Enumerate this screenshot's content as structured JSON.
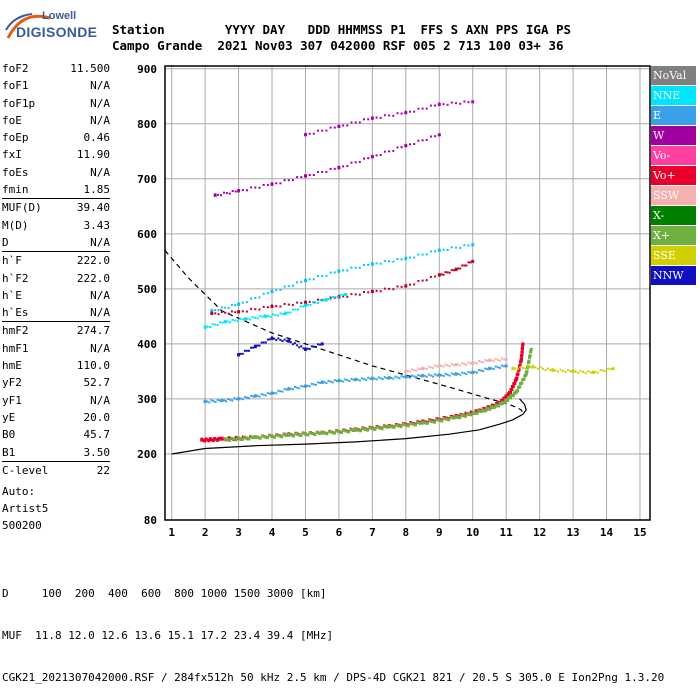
{
  "logo": {
    "line1": "Lowell",
    "line2": "DIGISONDE"
  },
  "header": {
    "line1": "Station        YYYY DAY   DDD HHMMSS P1  FFS S AXN PPS IGA PS",
    "line2": "Campo Grande  2021 Nov03 307 042000 RSF 005 2 713 100 03+ 36"
  },
  "params": [
    {
      "group": [
        {
          "k": "foF2",
          "v": "11.500"
        },
        {
          "k": "foF1",
          "v": "N/A"
        },
        {
          "k": "foF1p",
          "v": "N/A"
        },
        {
          "k": "foE",
          "v": "N/A"
        },
        {
          "k": "foEp",
          "v": "0.46"
        },
        {
          "k": "fxI",
          "v": "11.90"
        },
        {
          "k": "foEs",
          "v": "N/A"
        },
        {
          "k": "fmin",
          "v": "1.85"
        }
      ]
    },
    {
      "group": [
        {
          "k": "MUF(D)",
          "v": "39.40"
        },
        {
          "k": "M(D)",
          "v": "3.43"
        },
        {
          "k": "D",
          "v": "N/A"
        }
      ]
    },
    {
      "group": [
        {
          "k": "h`F",
          "v": "222.0"
        },
        {
          "k": "h`F2",
          "v": "222.0"
        },
        {
          "k": "h`E",
          "v": "N/A"
        },
        {
          "k": "h`Es",
          "v": "N/A"
        }
      ]
    },
    {
      "group": [
        {
          "k": "hmF2",
          "v": "274.7"
        },
        {
          "k": "hmF1",
          "v": "N/A"
        },
        {
          "k": "hmE",
          "v": "110.0"
        },
        {
          "k": "yF2",
          "v": "52.7"
        },
        {
          "k": "yF1",
          "v": "N/A"
        },
        {
          "k": "yE",
          "v": "20.0"
        },
        {
          "k": "B0",
          "v": "45.7"
        },
        {
          "k": "B1",
          "v": "3.50"
        }
      ]
    },
    {
      "group": [
        {
          "k": "C-level",
          "v": "22"
        }
      ]
    }
  ],
  "auto": {
    "line1": "Auto:",
    "line2": "Artist5",
    "line3": "500200"
  },
  "legend": [
    {
      "label": "NoVal",
      "color": "#808080"
    },
    {
      "label": "NNE",
      "color": "#00e5ff"
    },
    {
      "label": "E",
      "color": "#3aa0e8"
    },
    {
      "label": "W",
      "color": "#a000a0"
    },
    {
      "label": "Vo-",
      "color": "#ff40a0"
    },
    {
      "label": "Vo+",
      "color": "#e8002a"
    },
    {
      "label": "SSW",
      "color": "#f5b0b0"
    },
    {
      "label": "X-",
      "color": "#008000"
    },
    {
      "label": "X+",
      "color": "#70b040"
    },
    {
      "label": "SSE",
      "color": "#d0d000"
    },
    {
      "label": "NNW",
      "color": "#1010c0"
    }
  ],
  "footer": {
    "line1": "D     100  200  400  600  800 1000 1500 3000 [km]",
    "line2": "MUF  11.8 12.0 12.6 13.6 15.1 17.2 23.4 39.4 [MHz]",
    "line3": "CGK21_2021307042000.RSF / 284fx512h 50 kHz 2.5 km / DPS-4D CGK21 821 / 20.5 S 305.0 E Ion2Png 1.3.20"
  },
  "chart_data": {
    "type": "scatter",
    "xlim": [
      0.8,
      15.3
    ],
    "ylim": [
      80,
      905
    ],
    "x_ticks": [
      1,
      2,
      3,
      4,
      5,
      6,
      7,
      8,
      9,
      10,
      11,
      12,
      13,
      14,
      15
    ],
    "y_ticks": [
      80,
      200,
      300,
      400,
      500,
      600,
      700,
      800,
      900
    ],
    "grid": true,
    "series": [
      {
        "name": "Vo+",
        "color": "#e8002a",
        "type": "trace",
        "x": [
          1.9,
          2.5,
          3.5,
          4.5,
          5.5,
          6.5,
          7.5,
          8.5,
          9.5,
          10.2,
          10.8,
          11.1,
          11.3,
          11.45,
          11.5
        ],
        "y": [
          225,
          227,
          230,
          235,
          238,
          244,
          250,
          258,
          268,
          278,
          292,
          310,
          335,
          370,
          400
        ]
      },
      {
        "name": "X+",
        "color": "#70b040",
        "type": "trace",
        "x": [
          2.6,
          3.5,
          4.5,
          5.5,
          6.5,
          7.5,
          8.5,
          9.5,
          10.3,
          10.9,
          11.3,
          11.6,
          11.75
        ],
        "y": [
          226,
          230,
          234,
          238,
          243,
          249,
          256,
          266,
          278,
          292,
          312,
          345,
          390
        ]
      },
      {
        "name": "E",
        "color": "#3aa0e8",
        "type": "trace",
        "x": [
          2.0,
          2.5,
          3.0,
          3.5,
          4.0,
          4.5,
          5.0,
          5.5,
          6.0,
          6.5,
          7.0,
          7.5,
          8.0,
          8.5,
          9.0,
          9.5,
          10.0,
          10.5,
          11.0
        ],
        "y": [
          295,
          297,
          300,
          305,
          310,
          318,
          323,
          330,
          333,
          335,
          337,
          338,
          340,
          342,
          343,
          345,
          348,
          355,
          360
        ]
      },
      {
        "name": "E2",
        "color": "#00c8ff",
        "type": "trace",
        "x": [
          2.2,
          3.0,
          4.0,
          5.0,
          6.0,
          7.0,
          8.0,
          9.0,
          10.0
        ],
        "y": [
          460,
          472,
          495,
          515,
          532,
          545,
          555,
          570,
          580
        ]
      },
      {
        "name": "Vo+2",
        "color": "#c0002a",
        "type": "trace",
        "x": [
          2.2,
          3,
          4,
          5,
          6,
          7,
          8,
          9,
          9.5,
          10
        ],
        "y": [
          455,
          458,
          468,
          475,
          485,
          495,
          505,
          525,
          535,
          550
        ]
      },
      {
        "name": "W",
        "color": "#a000a0",
        "type": "trace",
        "x": [
          2.3,
          3,
          4,
          5,
          6,
          7,
          8,
          9
        ],
        "y": [
          670,
          678,
          690,
          705,
          720,
          740,
          760,
          780
        ]
      },
      {
        "name": "W2",
        "color": "#b000b0",
        "type": "trace",
        "x": [
          5,
          6,
          7,
          8,
          9,
          10
        ],
        "y": [
          780,
          795,
          810,
          820,
          835,
          840
        ]
      },
      {
        "name": "SSW",
        "color": "#f5b0b0",
        "type": "trace",
        "x": [
          8,
          8.5,
          9,
          9.5,
          10,
          10.5,
          11
        ],
        "y": [
          350,
          355,
          360,
          362,
          365,
          370,
          372
        ]
      },
      {
        "name": "SSE",
        "color": "#d0d000",
        "type": "trace",
        "x": [
          11.2,
          11.8,
          12.4,
          13,
          13.6,
          14.2
        ],
        "y": [
          355,
          358,
          352,
          350,
          348,
          355
        ]
      },
      {
        "name": "NNE",
        "color": "#00e5ff",
        "type": "trace",
        "x": [
          2,
          2.6,
          3.2,
          3.8,
          4.4,
          5,
          5.6,
          6.2
        ],
        "y": [
          430,
          440,
          445,
          450,
          455,
          470,
          480,
          490
        ]
      },
      {
        "name": "NNW",
        "color": "#1010c0",
        "type": "trace",
        "x": [
          3,
          3.5,
          4,
          4.5,
          5,
          5.5
        ],
        "y": [
          380,
          395,
          410,
          405,
          390,
          400
        ]
      }
    ],
    "profile_dashed": {
      "x": [
        0.8,
        1.5,
        2.5,
        4,
        5.5,
        7,
        8.5,
        9.5,
        10.5,
        11.0,
        11.3,
        11.45,
        11.5
      ],
      "y": [
        570,
        520,
        460,
        420,
        390,
        360,
        335,
        318,
        300,
        292,
        285,
        280,
        275
      ]
    },
    "profile_solid": {
      "x": [
        1.0,
        2.0,
        3.5,
        5,
        6.5,
        8,
        9.3,
        10.2,
        10.8,
        11.2,
        11.5,
        11.6,
        11.55,
        11.4
      ],
      "y": [
        200,
        210,
        215,
        218,
        222,
        228,
        236,
        244,
        254,
        262,
        272,
        280,
        290,
        300
      ]
    }
  }
}
